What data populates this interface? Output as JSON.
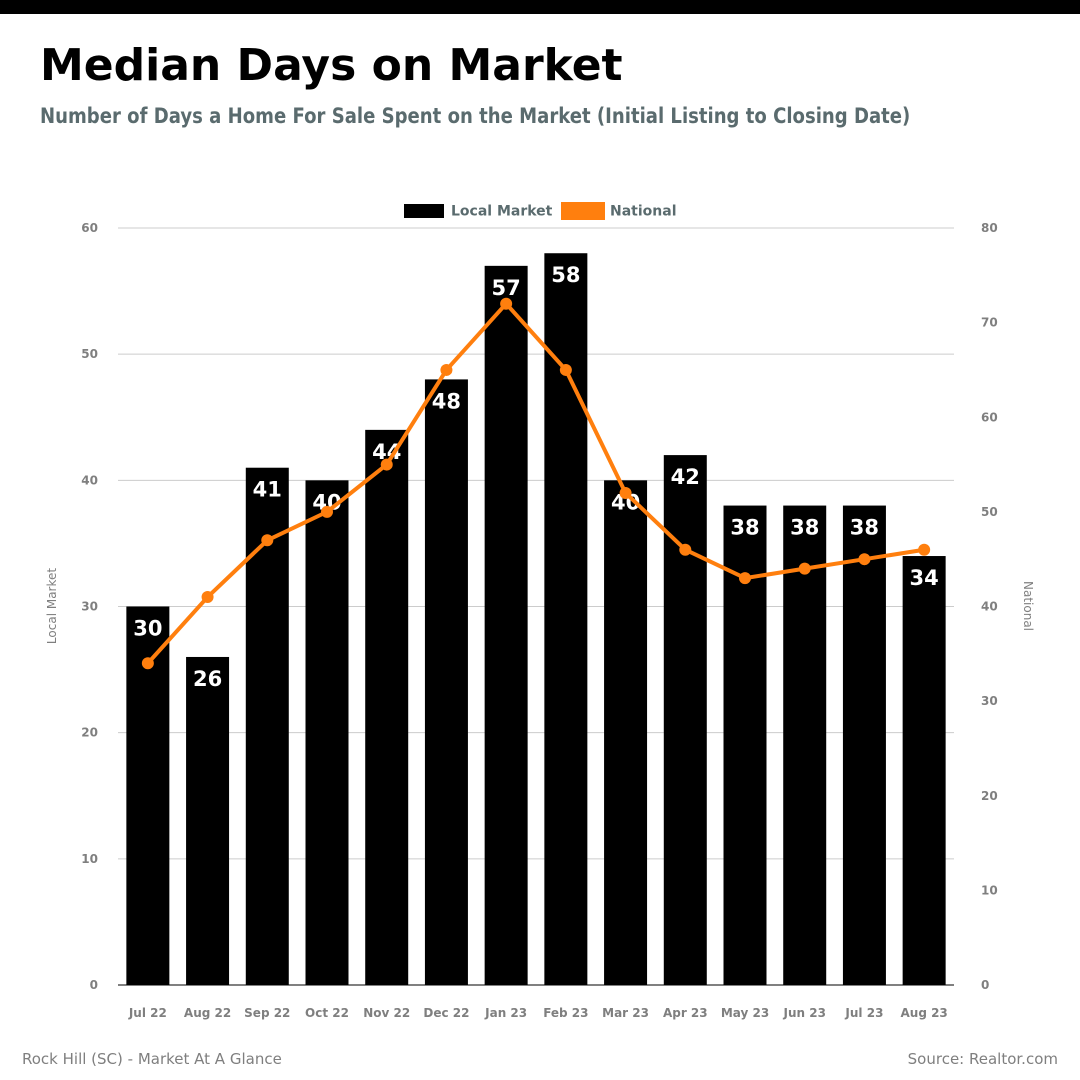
{
  "header": {
    "title": "Median Days on Market",
    "subtitle": "Number of Days a Home For Sale Spent on the Market (Initial Listing to Closing Date)"
  },
  "footer": {
    "left": "Rock Hill (SC) - Market At A Glance",
    "right": "Source: Realtor.com"
  },
  "colors": {
    "bar": "#000000",
    "line": "#ff7f0e",
    "axis_text": "#7f7f7f",
    "legend_text": "#5a6b6e",
    "grid": "#cccccc",
    "bar_label": "#ffffff"
  },
  "chart_data": {
    "type": "bar",
    "categories": [
      "Jul 22",
      "Aug 22",
      "Sep 22",
      "Oct 22",
      "Nov 22",
      "Dec 22",
      "Jan 23",
      "Feb 23",
      "Mar 23",
      "Apr 23",
      "May 23",
      "Jun 23",
      "Jul 23",
      "Aug 23"
    ],
    "series": [
      {
        "name": "Local Market",
        "type": "bar",
        "axis": "left",
        "values": [
          30,
          26,
          41,
          40,
          44,
          48,
          57,
          58,
          40,
          42,
          38,
          38,
          38,
          34
        ]
      },
      {
        "name": "National",
        "type": "line",
        "axis": "right",
        "values": [
          34,
          41,
          47,
          50,
          55,
          65,
          72,
          65,
          52,
          46,
          43,
          44,
          45,
          46
        ]
      }
    ],
    "ylabel_left": "Local Market",
    "ylabel_right": "National",
    "ylim_left": [
      0,
      60
    ],
    "ylim_right": [
      0,
      80
    ],
    "yticks_left": [
      0,
      10,
      20,
      30,
      40,
      50,
      60
    ],
    "yticks_right": [
      0,
      10,
      20,
      30,
      40,
      50,
      60,
      70,
      80
    ],
    "grid": true,
    "legend_position": "top-center",
    "data_labels": true
  }
}
